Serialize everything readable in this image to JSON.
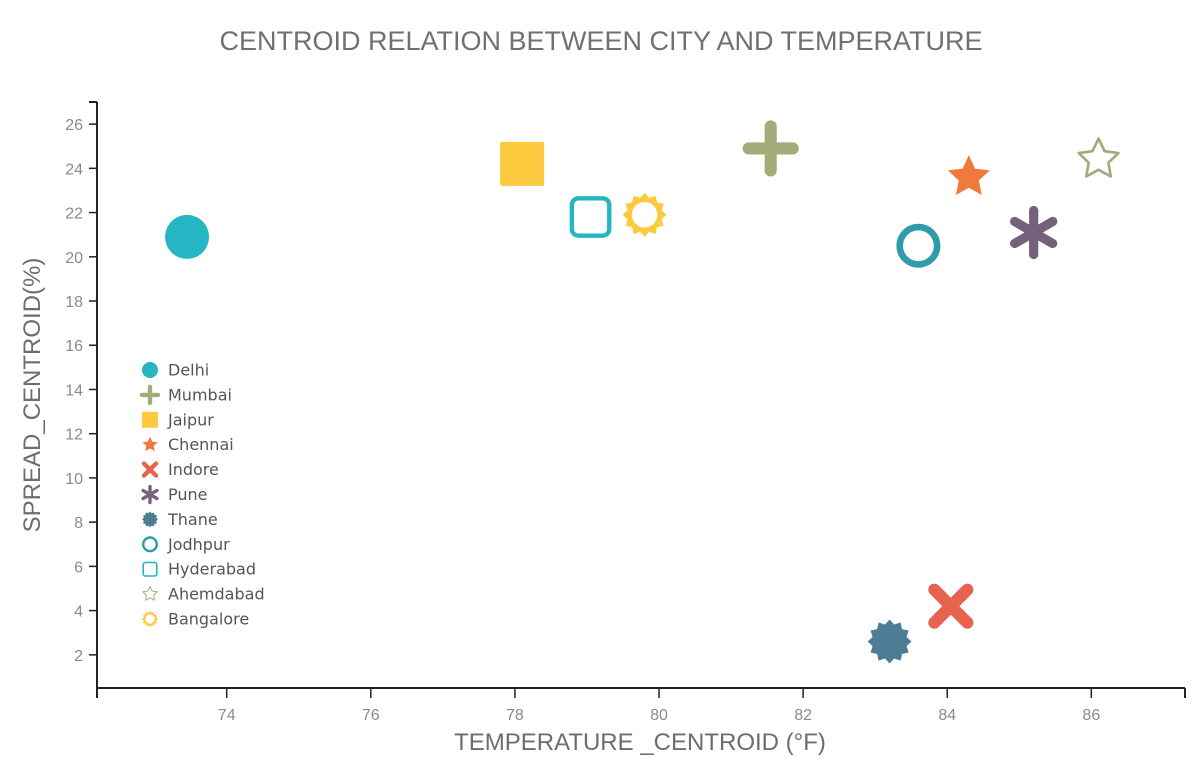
{
  "chart_data": {
    "type": "scatter",
    "title": "CENTROID RELATION BETWEEN CITY AND TEMPERATURE",
    "xlabel": "TEMPERATURE _CENTROID (°F)",
    "ylabel": "SPREAD_CENTROID(%)",
    "xlim": [
      72.2,
      87.3
    ],
    "ylim": [
      0.5,
      27.0
    ],
    "xticks": [
      74,
      76,
      78,
      80,
      82,
      84,
      86
    ],
    "yticks": [
      2,
      4,
      6,
      8,
      10,
      12,
      14,
      16,
      18,
      20,
      22,
      24,
      26
    ],
    "grid": false,
    "legend_position": "left",
    "series": [
      {
        "name": "Delhi",
        "marker": "circle",
        "color": "#26b5c2",
        "points": [
          {
            "x": 73.45,
            "y": 20.9
          }
        ]
      },
      {
        "name": "Mumbai",
        "marker": "plus",
        "color": "#a3ab78",
        "points": [
          {
            "x": 81.55,
            "y": 24.9
          }
        ]
      },
      {
        "name": "Jaipur",
        "marker": "square",
        "color": "#fdc93e",
        "points": [
          {
            "x": 78.1,
            "y": 24.2
          }
        ]
      },
      {
        "name": "Chennai",
        "marker": "star",
        "color": "#f07a3c",
        "points": [
          {
            "x": 84.3,
            "y": 23.6
          }
        ]
      },
      {
        "name": "Indore",
        "marker": "cross",
        "color": "#e8634f",
        "points": [
          {
            "x": 84.05,
            "y": 4.2
          }
        ]
      },
      {
        "name": "Pune",
        "marker": "asterisk",
        "color": "#74627c",
        "points": [
          {
            "x": 85.2,
            "y": 21.1
          }
        ]
      },
      {
        "name": "Thane",
        "marker": "burst",
        "color": "#4e7c94",
        "points": [
          {
            "x": 83.2,
            "y": 2.6
          }
        ]
      },
      {
        "name": "Jodhpur",
        "marker": "ring",
        "color": "#2f9bab",
        "points": [
          {
            "x": 83.6,
            "y": 20.5
          }
        ]
      },
      {
        "name": "Hyderabad",
        "marker": "square-outline",
        "color": "#26b5c2",
        "points": [
          {
            "x": 79.05,
            "y": 21.8
          }
        ]
      },
      {
        "name": "Ahemdabad",
        "marker": "star-outline",
        "color": "#a3ab78",
        "points": [
          {
            "x": 86.1,
            "y": 24.4
          }
        ]
      },
      {
        "name": "Bangalore",
        "marker": "sun",
        "color": "#fdc93e",
        "points": [
          {
            "x": 79.8,
            "y": 21.9
          }
        ]
      }
    ]
  }
}
